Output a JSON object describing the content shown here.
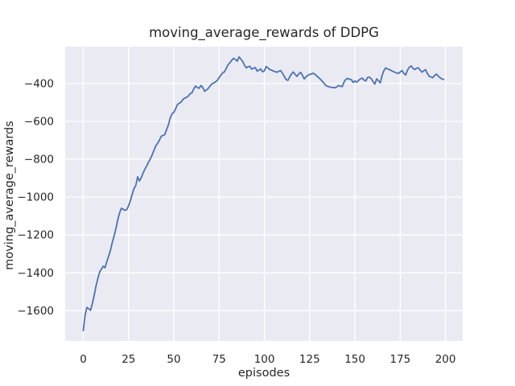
{
  "chart_data": {
    "type": "line",
    "title": "moving_average_rewards of DDPG",
    "xlabel": "episodes",
    "ylabel": "moving_average_rewards",
    "x_ticks": [
      0,
      25,
      50,
      75,
      100,
      125,
      150,
      175,
      200
    ],
    "y_ticks": [
      -400,
      -600,
      -800,
      -1000,
      -1200,
      -1400,
      -1600
    ],
    "xlim": [
      -10,
      209.5
    ],
    "ylim": [
      -1760,
      -205
    ],
    "grid": true,
    "legend_position": "none",
    "style": {
      "line_color": "#4c72b0",
      "plot_background": "#eaeaf2",
      "grid_color": "#ffffff",
      "text_color": "#262626",
      "figure_background": "#ffffff"
    },
    "series": [
      {
        "name": "moving_average_rewards",
        "x_start": 0,
        "x_step": 1,
        "values": [
          -1705,
          -1622,
          -1583,
          -1590,
          -1598,
          -1562,
          -1520,
          -1470,
          -1432,
          -1396,
          -1380,
          -1365,
          -1373,
          -1340,
          -1312,
          -1280,
          -1240,
          -1205,
          -1168,
          -1120,
          -1085,
          -1059,
          -1064,
          -1070,
          -1066,
          -1045,
          -1019,
          -985,
          -955,
          -938,
          -893,
          -915,
          -898,
          -873,
          -853,
          -835,
          -816,
          -798,
          -778,
          -753,
          -730,
          -716,
          -700,
          -679,
          -674,
          -670,
          -644,
          -618,
          -582,
          -560,
          -552,
          -533,
          -511,
          -504,
          -498,
          -484,
          -477,
          -473,
          -466,
          -453,
          -449,
          -428,
          -413,
          -421,
          -425,
          -410,
          -421,
          -441,
          -434,
          -426,
          -413,
          -402,
          -397,
          -391,
          -384,
          -369,
          -355,
          -344,
          -337,
          -318,
          -299,
          -290,
          -276,
          -267,
          -273,
          -282,
          -259,
          -271,
          -283,
          -303,
          -317,
          -311,
          -309,
          -324,
          -319,
          -316,
          -334,
          -329,
          -323,
          -338,
          -332,
          -310,
          -318,
          -326,
          -329,
          -334,
          -338,
          -340,
          -335,
          -331,
          -346,
          -362,
          -379,
          -383,
          -364,
          -349,
          -339,
          -352,
          -362,
          -349,
          -341,
          -356,
          -376,
          -364,
          -357,
          -352,
          -349,
          -345,
          -352,
          -361,
          -369,
          -378,
          -388,
          -400,
          -410,
          -415,
          -418,
          -420,
          -421,
          -422,
          -418,
          -410,
          -414,
          -416,
          -392,
          -378,
          -373,
          -377,
          -379,
          -394,
          -386,
          -393,
          -384,
          -376,
          -371,
          -381,
          -386,
          -368,
          -366,
          -374,
          -390,
          -403,
          -375,
          -385,
          -396,
          -358,
          -331,
          -317,
          -323,
          -326,
          -331,
          -336,
          -340,
          -344,
          -347,
          -339,
          -331,
          -346,
          -355,
          -329,
          -314,
          -307,
          -319,
          -326,
          -319,
          -317,
          -329,
          -340,
          -332,
          -327,
          -347,
          -362,
          -365,
          -369,
          -357,
          -350,
          -361,
          -369,
          -376,
          -378
        ]
      }
    ]
  }
}
